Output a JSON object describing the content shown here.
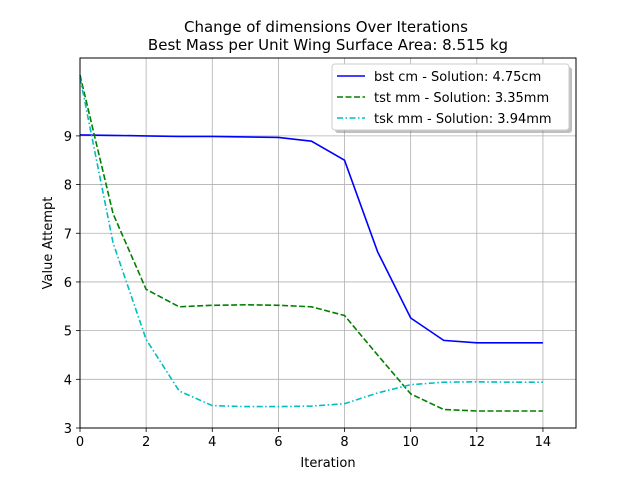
{
  "chart_data": {
    "type": "line",
    "title": "Change of dimensions Over Iterations",
    "subtitle": "Best Mass per Unit Wing Surface Area: 8.515 kg",
    "xlabel": "Iteration",
    "ylabel": "Value Attempt",
    "xlim": [
      0,
      15
    ],
    "ylim": [
      3,
      10.6
    ],
    "xticks": [
      0,
      2,
      4,
      6,
      8,
      10,
      12,
      14
    ],
    "yticks": [
      3,
      4,
      5,
      6,
      7,
      8,
      9
    ],
    "grid": true,
    "legend_position": "top-right",
    "x": [
      0,
      1,
      2,
      3,
      4,
      5,
      6,
      7,
      8,
      9,
      10,
      11,
      12,
      13,
      14
    ],
    "series": [
      {
        "name": "bst cm - Solution: 4.75cm",
        "color": "#0000ff",
        "style": "solid",
        "values": [
          9.02,
          9.01,
          9.0,
          8.99,
          8.99,
          8.98,
          8.97,
          8.89,
          8.5,
          6.62,
          5.26,
          4.8,
          4.75,
          4.75,
          4.75
        ]
      },
      {
        "name": "tst mm - Solution: 3.35mm",
        "color": "#008000",
        "style": "dashed",
        "values": [
          10.25,
          7.4,
          5.85,
          5.49,
          5.52,
          5.53,
          5.52,
          5.49,
          5.31,
          4.5,
          3.7,
          3.38,
          3.35,
          3.35,
          3.35
        ]
      },
      {
        "name": "tsk mm - Solution: 3.94mm",
        "color": "#00bfbf",
        "style": "dashdot",
        "values": [
          10.2,
          6.8,
          4.82,
          3.76,
          3.46,
          3.44,
          3.44,
          3.45,
          3.5,
          3.72,
          3.89,
          3.94,
          3.95,
          3.94,
          3.94
        ]
      }
    ]
  }
}
